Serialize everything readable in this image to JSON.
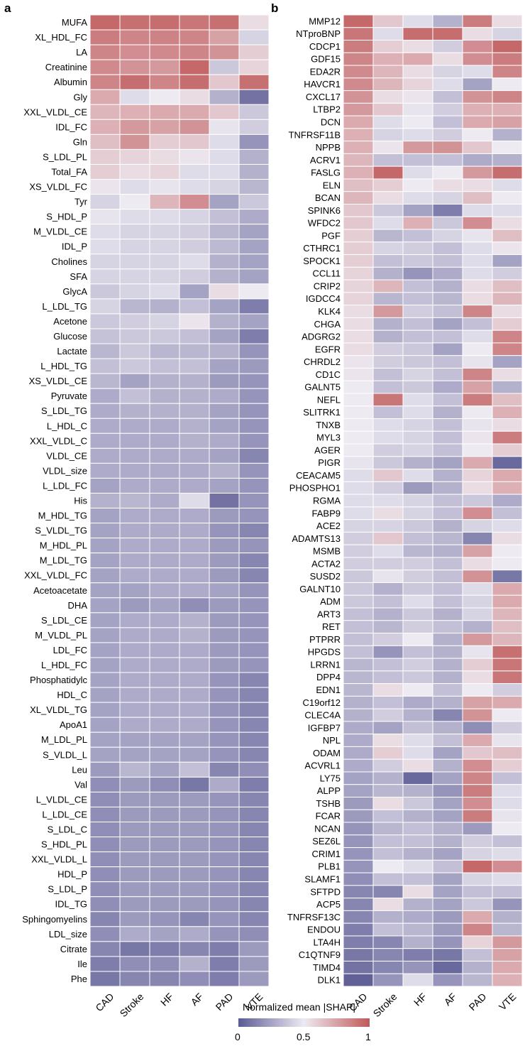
{
  "panels": [
    {
      "letter": "a"
    },
    {
      "letter": "b"
    }
  ],
  "colorbar": {
    "title": "Normalized mean |SHAP|",
    "ticks": [
      "0",
      "0.5",
      "1"
    ],
    "color_low": "#5b5b94",
    "color_mid": "#eeeaf2",
    "color_high": "#c0595a"
  },
  "chart_data": [
    {
      "type": "heatmap",
      "panel": "a",
      "columns": [
        "CAD",
        "Stroke",
        "HF",
        "AF",
        "PAD",
        "VTE"
      ],
      "rows": [
        "MUFA",
        "XL_HDL_FC",
        "LA",
        "Creatinine",
        "Albumin",
        "Gly",
        "XXL_VLDL_CE",
        "IDL_FC",
        "Gln",
        "S_LDL_PL",
        "Total_FA",
        "XS_VLDL_FC",
        "Tyr",
        "S_HDL_P",
        "M_VLDL_CE",
        "IDL_P",
        "Cholines",
        "SFA",
        "GlycA",
        "L_LDL_TG",
        "Acetone",
        "Glucose",
        "Lactate",
        "L_HDL_TG",
        "XS_VLDL_CE",
        "Pyruvate",
        "S_LDL_TG",
        "L_HDL_C",
        "XXL_VLDL_C",
        "VLDL_CE",
        "VLDL_size",
        "L_LDL_FC",
        "His",
        "M_HDL_TG",
        "S_VLDL_TG",
        "M_HDL_PL",
        "M_LDL_TG",
        "XXL_VLDL_FC",
        "Acetoacetate",
        "DHA",
        "S_LDL_CE",
        "M_VLDL_PL",
        "LDL_FC",
        "L_HDL_FC",
        "Phosphatidylc",
        "HDL_C",
        "XL_VLDL_TG",
        "ApoA1",
        "M_LDL_PL",
        "S_VLDL_L",
        "Leu",
        "Val",
        "L_VLDL_CE",
        "L_LDL_CE",
        "S_LDL_C",
        "S_HDL_PL",
        "XXL_VLDL_L",
        "HDL_P",
        "S_LDL_P",
        "IDL_TG",
        "Sphingomyelins",
        "LDL_size",
        "Citrate",
        "Ile",
        "Phe"
      ],
      "values": [
        [
          0.95,
          0.92,
          0.93,
          0.9,
          0.92,
          0.55
        ],
        [
          0.88,
          0.85,
          0.86,
          0.85,
          0.75,
          0.42
        ],
        [
          0.85,
          0.82,
          0.83,
          0.85,
          0.8,
          0.6
        ],
        [
          0.83,
          0.8,
          0.78,
          0.95,
          0.38,
          0.58
        ],
        [
          0.85,
          0.93,
          0.85,
          0.93,
          0.62,
          0.92
        ],
        [
          0.72,
          0.45,
          0.5,
          0.55,
          0.3,
          0.08
        ],
        [
          0.68,
          0.7,
          0.72,
          0.72,
          0.62,
          0.38
        ],
        [
          0.7,
          0.78,
          0.75,
          0.8,
          0.48,
          0.4
        ],
        [
          0.65,
          0.8,
          0.6,
          0.62,
          0.45,
          0.2
        ],
        [
          0.6,
          0.58,
          0.55,
          0.52,
          0.45,
          0.3
        ],
        [
          0.6,
          0.55,
          0.58,
          0.45,
          0.45,
          0.3
        ],
        [
          0.52,
          0.45,
          0.48,
          0.45,
          0.42,
          0.32
        ],
        [
          0.42,
          0.5,
          0.68,
          0.82,
          0.25,
          0.38
        ],
        [
          0.48,
          0.45,
          0.45,
          0.42,
          0.35,
          0.28
        ],
        [
          0.45,
          0.42,
          0.42,
          0.4,
          0.32,
          0.25
        ],
        [
          0.45,
          0.42,
          0.42,
          0.4,
          0.33,
          0.25
        ],
        [
          0.42,
          0.42,
          0.42,
          0.45,
          0.3,
          0.25
        ],
        [
          0.42,
          0.42,
          0.42,
          0.4,
          0.3,
          0.25
        ],
        [
          0.38,
          0.42,
          0.45,
          0.25,
          0.55,
          0.5
        ],
        [
          0.42,
          0.32,
          0.3,
          0.35,
          0.25,
          0.12
        ],
        [
          0.38,
          0.4,
          0.42,
          0.52,
          0.3,
          0.25
        ],
        [
          0.36,
          0.38,
          0.38,
          0.35,
          0.25,
          0.12
        ],
        [
          0.32,
          0.38,
          0.32,
          0.32,
          0.3,
          0.2
        ],
        [
          0.35,
          0.38,
          0.35,
          0.35,
          0.25,
          0.22
        ],
        [
          0.32,
          0.25,
          0.3,
          0.3,
          0.22,
          0.2
        ],
        [
          0.28,
          0.35,
          0.3,
          0.3,
          0.28,
          0.2
        ],
        [
          0.28,
          0.3,
          0.3,
          0.3,
          0.25,
          0.2
        ],
        [
          0.28,
          0.28,
          0.28,
          0.3,
          0.25,
          0.2
        ],
        [
          0.28,
          0.28,
          0.28,
          0.3,
          0.28,
          0.2
        ],
        [
          0.28,
          0.28,
          0.28,
          0.28,
          0.25,
          0.15
        ],
        [
          0.28,
          0.28,
          0.28,
          0.28,
          0.3,
          0.2
        ],
        [
          0.25,
          0.28,
          0.28,
          0.28,
          0.25,
          0.2
        ],
        [
          0.3,
          0.32,
          0.28,
          0.45,
          0.08,
          0.2
        ],
        [
          0.25,
          0.28,
          0.28,
          0.28,
          0.22,
          0.2
        ],
        [
          0.25,
          0.28,
          0.28,
          0.28,
          0.2,
          0.15
        ],
        [
          0.25,
          0.28,
          0.28,
          0.28,
          0.22,
          0.2
        ],
        [
          0.25,
          0.28,
          0.28,
          0.28,
          0.22,
          0.15
        ],
        [
          0.25,
          0.28,
          0.28,
          0.28,
          0.22,
          0.15
        ],
        [
          0.25,
          0.25,
          0.28,
          0.28,
          0.25,
          0.2
        ],
        [
          0.25,
          0.22,
          0.25,
          0.18,
          0.22,
          0.2
        ],
        [
          0.25,
          0.28,
          0.28,
          0.3,
          0.22,
          0.2
        ],
        [
          0.25,
          0.28,
          0.28,
          0.3,
          0.22,
          0.2
        ],
        [
          0.25,
          0.28,
          0.28,
          0.28,
          0.22,
          0.2
        ],
        [
          0.25,
          0.28,
          0.28,
          0.28,
          0.22,
          0.2
        ],
        [
          0.25,
          0.28,
          0.28,
          0.28,
          0.2,
          0.15
        ],
        [
          0.25,
          0.28,
          0.28,
          0.28,
          0.2,
          0.15
        ],
        [
          0.25,
          0.28,
          0.28,
          0.28,
          0.2,
          0.15
        ],
        [
          0.25,
          0.28,
          0.28,
          0.28,
          0.2,
          0.15
        ],
        [
          0.25,
          0.25,
          0.25,
          0.25,
          0.2,
          0.15
        ],
        [
          0.25,
          0.25,
          0.25,
          0.25,
          0.2,
          0.15
        ],
        [
          0.22,
          0.32,
          0.25,
          0.35,
          0.15,
          0.18
        ],
        [
          0.18,
          0.22,
          0.18,
          0.1,
          0.28,
          0.12
        ],
        [
          0.18,
          0.22,
          0.22,
          0.22,
          0.2,
          0.15
        ],
        [
          0.18,
          0.22,
          0.22,
          0.22,
          0.2,
          0.15
        ],
        [
          0.18,
          0.22,
          0.22,
          0.22,
          0.2,
          0.15
        ],
        [
          0.18,
          0.22,
          0.22,
          0.22,
          0.2,
          0.15
        ],
        [
          0.18,
          0.22,
          0.22,
          0.22,
          0.2,
          0.15
        ],
        [
          0.18,
          0.22,
          0.22,
          0.22,
          0.2,
          0.15
        ],
        [
          0.18,
          0.22,
          0.22,
          0.22,
          0.2,
          0.15
        ],
        [
          0.18,
          0.22,
          0.22,
          0.22,
          0.2,
          0.15
        ],
        [
          0.15,
          0.22,
          0.2,
          0.15,
          0.2,
          0.15
        ],
        [
          0.18,
          0.28,
          0.25,
          0.28,
          0.2,
          0.18
        ],
        [
          0.15,
          0.1,
          0.12,
          0.15,
          0.12,
          0.22
        ],
        [
          0.12,
          0.18,
          0.18,
          0.3,
          0.12,
          0.22
        ],
        [
          0.1,
          0.15,
          0.15,
          0.18,
          0.12,
          0.22
        ]
      ]
    },
    {
      "type": "heatmap",
      "panel": "b",
      "columns": [
        "CAD",
        "Stroke",
        "HF",
        "AF",
        "PAD",
        "VTE"
      ],
      "rows": [
        "MMP12",
        "NTproBNP",
        "CDCP1",
        "GDF15",
        "EDA2R",
        "HAVCR1",
        "CXCL17",
        "LTBP2",
        "DCN",
        "TNFRSF11B",
        "NPPB",
        "ACRV1",
        "FASLG",
        "ELN",
        "BCAN",
        "SPINK6",
        "WFDC2",
        "PGF",
        "CTHRC1",
        "SPOCK1",
        "CCL11",
        "CRIP2",
        "IGDCC4",
        "KLK4",
        "CHGA",
        "ADGRG2",
        "EGFR",
        "CHRDL2",
        "CD1C",
        "GALNT5",
        "NEFL",
        "SLITRK1",
        "TNXB",
        "MYL3",
        "AGER",
        "PIGR",
        "CEACAM5",
        "PHOSPHO1",
        "RGMA",
        "FABP9",
        "ACE2",
        "ADAMTS13",
        "MSMB",
        "ACTA2",
        "SUSD2",
        "GALNT10",
        "ADM",
        "ART3",
        "RET",
        "PTPRR",
        "HPGDS",
        "LRRN1",
        "DPP4",
        "EDN1",
        "C19orf12",
        "CLEC4A",
        "IGFBP7",
        "NPL",
        "ODAM",
        "ACVRL1",
        "LY75",
        "ALPP",
        "TSHB",
        "FCAR",
        "NCAN",
        "SEZ6L",
        "CRIM1",
        "PLB1",
        "SLAMF1",
        "SFTPD",
        "ACP5",
        "TNFRSF13C",
        "ENDOU",
        "LTA4H",
        "C1QTNF9",
        "TIMD4",
        "DLK1"
      ],
      "values": [
        [
          0.95,
          0.62,
          0.45,
          0.3,
          0.88,
          0.55
        ],
        [
          0.9,
          0.45,
          0.93,
          0.93,
          0.55,
          0.42
        ],
        [
          0.88,
          0.6,
          0.55,
          0.4,
          0.82,
          0.95
        ],
        [
          0.85,
          0.7,
          0.72,
          0.55,
          0.82,
          0.88
        ],
        [
          0.83,
          0.68,
          0.55,
          0.42,
          0.45,
          0.85
        ],
        [
          0.83,
          0.68,
          0.58,
          0.45,
          0.25,
          0.5
        ],
        [
          0.8,
          0.55,
          0.52,
          0.35,
          0.8,
          0.85
        ],
        [
          0.78,
          0.62,
          0.48,
          0.4,
          0.7,
          0.7
        ],
        [
          0.72,
          0.45,
          0.5,
          0.35,
          0.72,
          0.75
        ],
        [
          0.7,
          0.42,
          0.45,
          0.4,
          0.5,
          0.3
        ],
        [
          0.7,
          0.52,
          0.78,
          0.8,
          0.62,
          0.5
        ],
        [
          0.68,
          0.35,
          0.35,
          0.35,
          0.28,
          0.3
        ],
        [
          0.7,
          0.95,
          0.45,
          0.5,
          0.78,
          0.93
        ],
        [
          0.65,
          0.6,
          0.5,
          0.55,
          0.55,
          0.45
        ],
        [
          0.68,
          0.55,
          0.45,
          0.42,
          0.65,
          0.5
        ],
        [
          0.62,
          0.38,
          0.25,
          0.12,
          0.45,
          0.45
        ],
        [
          0.62,
          0.45,
          0.7,
          0.38,
          0.82,
          0.55
        ],
        [
          0.6,
          0.32,
          0.35,
          0.42,
          0.48,
          0.65
        ],
        [
          0.6,
          0.42,
          0.4,
          0.35,
          0.45,
          0.52
        ],
        [
          0.6,
          0.35,
          0.38,
          0.35,
          0.45,
          0.25
        ],
        [
          0.58,
          0.3,
          0.2,
          0.28,
          0.45,
          0.4
        ],
        [
          0.58,
          0.68,
          0.35,
          0.3,
          0.55,
          0.65
        ],
        [
          0.58,
          0.32,
          0.35,
          0.32,
          0.55,
          0.68
        ],
        [
          0.55,
          0.78,
          0.4,
          0.35,
          0.85,
          0.55
        ],
        [
          0.55,
          0.3,
          0.35,
          0.25,
          0.35,
          0.6
        ],
        [
          0.55,
          0.3,
          0.35,
          0.35,
          0.45,
          0.85
        ],
        [
          0.55,
          0.4,
          0.38,
          0.25,
          0.5,
          0.85
        ],
        [
          0.52,
          0.4,
          0.38,
          0.35,
          0.48,
          0.25
        ],
        [
          0.52,
          0.35,
          0.42,
          0.35,
          0.85,
          0.55
        ],
        [
          0.5,
          0.35,
          0.38,
          0.28,
          0.75,
          0.3
        ],
        [
          0.5,
          0.9,
          0.45,
          0.35,
          0.88,
          0.65
        ],
        [
          0.5,
          0.35,
          0.45,
          0.3,
          0.5,
          0.7
        ],
        [
          0.5,
          0.45,
          0.42,
          0.35,
          0.48,
          0.55
        ],
        [
          0.5,
          0.45,
          0.42,
          0.35,
          0.52,
          0.88
        ],
        [
          0.5,
          0.4,
          0.42,
          0.35,
          0.5,
          0.6
        ],
        [
          0.48,
          0.38,
          0.3,
          0.25,
          0.72,
          0.05
        ],
        [
          0.45,
          0.62,
          0.45,
          0.3,
          0.58,
          0.72
        ],
        [
          0.45,
          0.4,
          0.22,
          0.3,
          0.55,
          0.7
        ],
        [
          0.45,
          0.45,
          0.42,
          0.35,
          0.38,
          0.28
        ],
        [
          0.45,
          0.55,
          0.42,
          0.35,
          0.82,
          0.35
        ],
        [
          0.42,
          0.42,
          0.38,
          0.3,
          0.42,
          0.45
        ],
        [
          0.4,
          0.62,
          0.35,
          0.32,
          0.15,
          0.55
        ],
        [
          0.4,
          0.45,
          0.32,
          0.3,
          0.75,
          0.5
        ],
        [
          0.4,
          0.4,
          0.4,
          0.35,
          0.55,
          0.5
        ],
        [
          0.38,
          0.48,
          0.4,
          0.35,
          0.8,
          0.1
        ],
        [
          0.38,
          0.3,
          0.38,
          0.35,
          0.45,
          0.72
        ],
        [
          0.38,
          0.35,
          0.45,
          0.35,
          0.42,
          0.72
        ],
        [
          0.35,
          0.3,
          0.38,
          0.3,
          0.42,
          0.68
        ],
        [
          0.35,
          0.32,
          0.4,
          0.35,
          0.3,
          0.65
        ],
        [
          0.35,
          0.4,
          0.5,
          0.3,
          0.78,
          0.68
        ],
        [
          0.35,
          0.2,
          0.35,
          0.3,
          0.48,
          0.92
        ],
        [
          0.32,
          0.35,
          0.4,
          0.3,
          0.6,
          0.9
        ],
        [
          0.32,
          0.35,
          0.38,
          0.3,
          0.55,
          0.9
        ],
        [
          0.32,
          0.55,
          0.5,
          0.35,
          0.5,
          0.4
        ],
        [
          0.3,
          0.35,
          0.28,
          0.3,
          0.75,
          0.72
        ],
        [
          0.3,
          0.4,
          0.3,
          0.15,
          0.8,
          0.5
        ],
        [
          0.28,
          0.25,
          0.35,
          0.3,
          0.18,
          0.4
        ],
        [
          0.28,
          0.55,
          0.45,
          0.35,
          0.72,
          0.48
        ],
        [
          0.28,
          0.6,
          0.45,
          0.25,
          0.62,
          0.65
        ],
        [
          0.28,
          0.4,
          0.55,
          0.3,
          0.82,
          0.6
        ],
        [
          0.25,
          0.3,
          0.05,
          0.25,
          0.85,
          0.35
        ],
        [
          0.25,
          0.32,
          0.3,
          0.2,
          0.88,
          0.45
        ],
        [
          0.22,
          0.55,
          0.38,
          0.25,
          0.82,
          0.45
        ],
        [
          0.22,
          0.35,
          0.3,
          0.25,
          0.88,
          0.48
        ],
        [
          0.2,
          0.32,
          0.35,
          0.3,
          0.22,
          0.5
        ],
        [
          0.2,
          0.35,
          0.35,
          0.3,
          0.4,
          0.35
        ],
        [
          0.2,
          0.35,
          0.3,
          0.25,
          0.42,
          0.45
        ],
        [
          0.2,
          0.5,
          0.45,
          0.35,
          0.95,
          0.82
        ],
        [
          0.18,
          0.35,
          0.35,
          0.25,
          0.42,
          0.45
        ],
        [
          0.15,
          0.15,
          0.55,
          0.25,
          0.35,
          0.35
        ],
        [
          0.15,
          0.55,
          0.3,
          0.25,
          0.38,
          0.2
        ],
        [
          0.15,
          0.3,
          0.28,
          0.22,
          0.72,
          0.3
        ],
        [
          0.12,
          0.35,
          0.32,
          0.22,
          0.85,
          0.32
        ],
        [
          0.12,
          0.15,
          0.3,
          0.2,
          0.58,
          0.78
        ],
        [
          0.1,
          0.15,
          0.12,
          0.1,
          0.35,
          0.75
        ],
        [
          0.08,
          0.15,
          0.2,
          0.05,
          0.3,
          0.72
        ],
        [
          0.02,
          0.2,
          0.45,
          0.2,
          0.32,
          0.7
        ]
      ]
    }
  ]
}
